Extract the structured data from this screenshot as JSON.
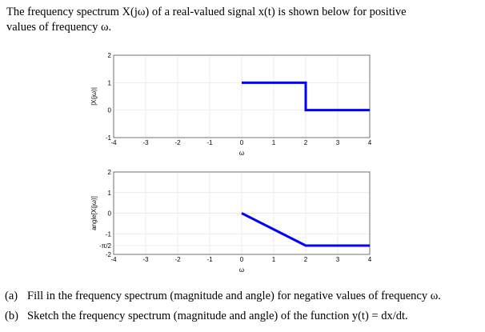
{
  "intro": {
    "line1": "The frequency spectrum X(jω) of a real-valued signal x(t) is shown below for positive",
    "line2": "values of frequency ω."
  },
  "questions": [
    {
      "label": "(a)",
      "text": "Fill in the frequency spectrum (magnitude and angle) for negative values of frequency ω."
    },
    {
      "label": "(b)",
      "text": "Sketch the frequency spectrum (magnitude and angle) of the function y(t) = dx/dt."
    }
  ],
  "chart_data": [
    {
      "type": "line",
      "xlabel": "ω",
      "ylabel": "|X(jω)|",
      "xlim": [
        -4,
        4
      ],
      "ylim": [
        -1,
        2
      ],
      "grid": true,
      "xticks": [
        "-4",
        "-3",
        "-2",
        "-1",
        "0",
        "1",
        "2",
        "3",
        "4"
      ],
      "yticks": [
        "-1",
        "0",
        "1",
        "2"
      ],
      "ytick_values": [
        -1,
        0,
        1,
        2
      ],
      "x": [
        0,
        2,
        2,
        4
      ],
      "y": [
        1,
        1,
        0,
        0
      ],
      "color": "#0000ff"
    },
    {
      "type": "line",
      "xlabel": "ω",
      "ylabel": "angle[X(jω)]",
      "xlim": [
        -4,
        4
      ],
      "ylim": [
        -2,
        2
      ],
      "grid": true,
      "xticks": [
        "-4",
        "-3",
        "-2",
        "-1",
        "0",
        "1",
        "2",
        "3",
        "4"
      ],
      "yticks": [
        "-2",
        "-π/2",
        "-1",
        "0",
        "1",
        "2"
      ],
      "ytick_values": [
        -2,
        -1.5708,
        -1,
        0,
        1,
        2
      ],
      "x": [
        0,
        2,
        4
      ],
      "y": [
        0,
        -1.5708,
        -1.5708
      ],
      "color": "#0000ff"
    }
  ]
}
